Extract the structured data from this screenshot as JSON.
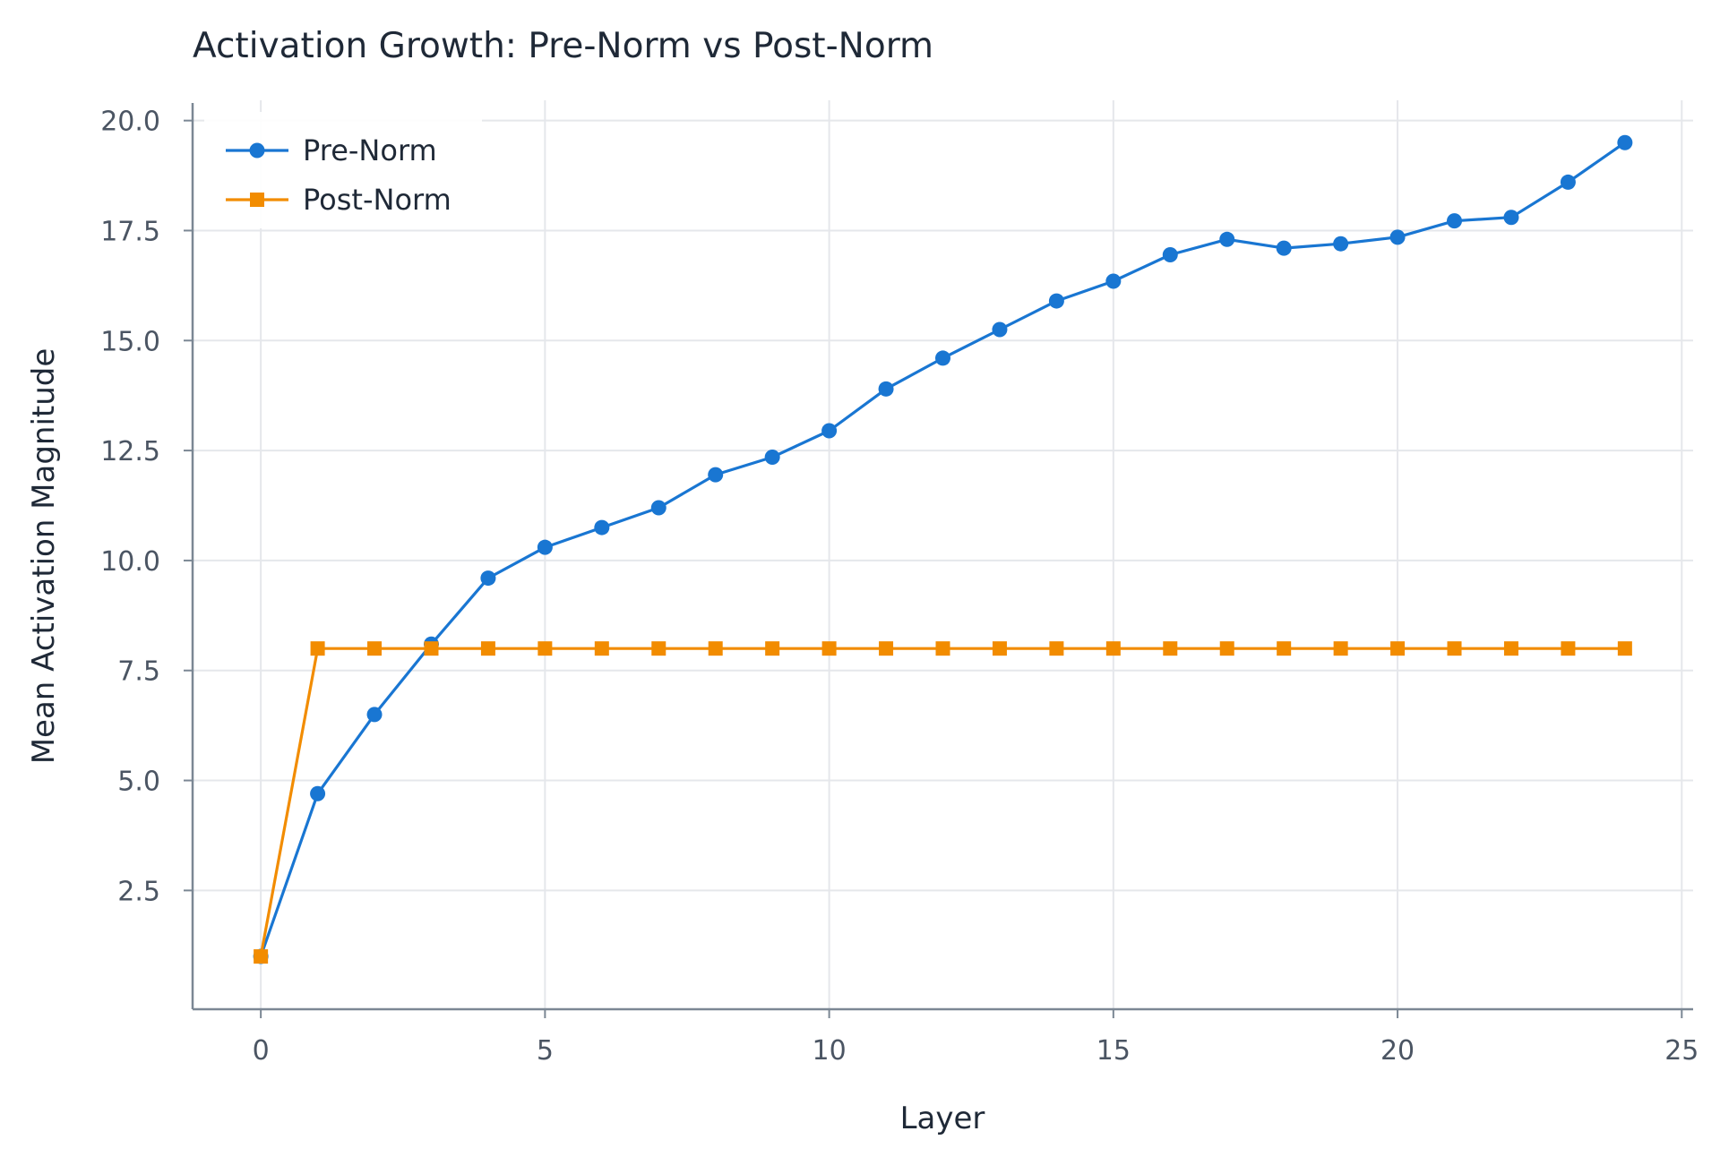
{
  "chart_data": {
    "type": "line",
    "title": "Activation Growth: Pre-Norm vs Post-Norm",
    "xlabel": "Layer",
    "ylabel": "Mean Activation Magnitude",
    "xlim": [
      -1.2,
      25.2
    ],
    "ylim": [
      -0.2,
      20.4
    ],
    "xticks": [
      0,
      5,
      10,
      15,
      20,
      25
    ],
    "xtick_labels": [
      "0",
      "5",
      "10",
      "15",
      "20",
      "25"
    ],
    "yticks": [
      2.5,
      5.0,
      7.5,
      10.0,
      12.5,
      15.0,
      17.5,
      20.0
    ],
    "ytick_labels": [
      "2.5",
      "5.0",
      "7.5",
      "10.0",
      "12.5",
      "15.0",
      "17.5",
      "20.0"
    ],
    "grid": true,
    "legend_position": "top-left",
    "x": [
      0,
      1,
      2,
      3,
      4,
      5,
      6,
      7,
      8,
      9,
      10,
      11,
      12,
      13,
      14,
      15,
      16,
      17,
      18,
      19,
      20,
      21,
      22,
      23,
      24
    ],
    "series": [
      {
        "name": "Pre-Norm",
        "color": "#1976d2",
        "marker": "circle",
        "values": [
          1.0,
          4.7,
          6.5,
          8.1,
          9.6,
          10.3,
          10.75,
          11.2,
          11.95,
          12.35,
          12.95,
          13.9,
          14.6,
          15.25,
          15.9,
          16.35,
          16.95,
          17.3,
          17.1,
          17.2,
          17.35,
          17.72,
          17.8,
          18.6,
          19.5
        ]
      },
      {
        "name": "Post-Norm",
        "color": "#f28c00",
        "marker": "square",
        "values": [
          1.0,
          8.0,
          8.0,
          8.0,
          8.0,
          8.0,
          8.0,
          8.0,
          8.0,
          8.0,
          8.0,
          8.0,
          8.0,
          8.0,
          8.0,
          8.0,
          8.0,
          8.0,
          8.0,
          8.0,
          8.0,
          8.0,
          8.0,
          8.0,
          8.0
        ]
      }
    ]
  }
}
